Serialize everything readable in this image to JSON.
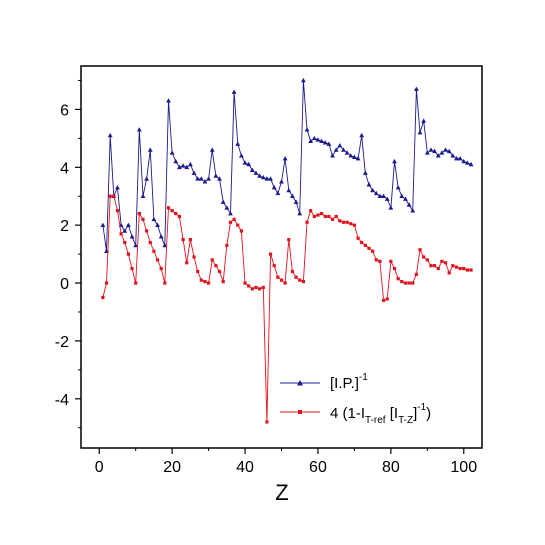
{
  "chart_data": {
    "type": "line",
    "xlabel": "Z",
    "ylabel": "",
    "xlim": [
      -5,
      105
    ],
    "ylim": [
      -5.7,
      7.5
    ],
    "xticks": [
      0,
      20,
      40,
      60,
      80,
      100
    ],
    "yticks": [
      -4,
      -2,
      0,
      2,
      4,
      6
    ],
    "xtick_labels": [
      "0",
      "20",
      "40",
      "60",
      "80",
      "100"
    ],
    "ytick_labels": [
      "-4",
      "-2",
      "0",
      "2",
      "4",
      "6"
    ],
    "grid": false,
    "legend_position": "bottom-right",
    "legend": {
      "blue": {
        "main": "[I.P.]",
        "sup": "-1"
      },
      "red": {
        "prefix": "4 (1-I",
        "sub1": "T-ref",
        "mid": " [I",
        "sub2": "T-Z",
        "close": "]",
        "sup": "-1",
        "end": ")"
      }
    },
    "series": [
      {
        "color": "#1a1a8c",
        "marker": "triangle",
        "x": [
          1,
          2,
          3,
          4,
          5,
          6,
          7,
          8,
          9,
          10,
          11,
          12,
          13,
          14,
          15,
          16,
          17,
          18,
          19,
          20,
          21,
          22,
          23,
          24,
          25,
          26,
          27,
          28,
          29,
          30,
          31,
          32,
          33,
          34,
          35,
          36,
          37,
          38,
          39,
          40,
          41,
          42,
          43,
          44,
          45,
          46,
          47,
          48,
          49,
          50,
          51,
          52,
          53,
          54,
          55,
          56,
          57,
          58,
          59,
          60,
          61,
          62,
          63,
          64,
          65,
          66,
          67,
          68,
          69,
          70,
          71,
          72,
          73,
          74,
          75,
          76,
          77,
          78,
          79,
          80,
          81,
          82,
          83,
          84,
          85,
          86,
          87,
          88,
          89,
          90,
          91,
          92,
          93,
          94,
          95,
          96,
          97,
          98,
          99,
          100,
          101,
          102
        ],
        "y": [
          2.0,
          1.1,
          5.1,
          3.0,
          3.3,
          2.0,
          1.8,
          2.0,
          1.6,
          1.3,
          5.3,
          3.0,
          3.6,
          4.6,
          2.2,
          2.0,
          1.6,
          1.3,
          6.3,
          4.5,
          4.2,
          4.0,
          4.05,
          4.0,
          4.1,
          3.8,
          3.6,
          3.6,
          3.5,
          3.6,
          4.6,
          3.7,
          3.6,
          2.8,
          2.6,
          2.4,
          6.6,
          4.8,
          4.4,
          4.15,
          4.1,
          3.9,
          3.8,
          3.7,
          3.65,
          3.6,
          3.6,
          3.3,
          3.1,
          3.5,
          4.3,
          3.2,
          3.0,
          2.8,
          2.4,
          7.0,
          5.3,
          4.9,
          5.0,
          4.95,
          4.9,
          4.85,
          4.8,
          4.4,
          4.6,
          4.75,
          4.6,
          4.5,
          4.4,
          4.35,
          4.3,
          5.1,
          3.8,
          3.4,
          3.2,
          3.1,
          3.0,
          3.0,
          2.9,
          2.6,
          4.2,
          3.3,
          3.0,
          2.9,
          2.7,
          2.5,
          6.7,
          5.2,
          5.6,
          4.5,
          4.6,
          4.55,
          4.4,
          4.5,
          4.6,
          4.55,
          4.4,
          4.3,
          4.3,
          4.2,
          4.15,
          4.1
        ]
      },
      {
        "color": "#e0141e",
        "marker": "square",
        "x": [
          1,
          2,
          3,
          4,
          5,
          6,
          7,
          8,
          9,
          10,
          11,
          12,
          13,
          14,
          15,
          16,
          17,
          18,
          19,
          20,
          21,
          22,
          23,
          24,
          25,
          26,
          27,
          28,
          29,
          30,
          31,
          32,
          33,
          34,
          35,
          36,
          37,
          38,
          39,
          40,
          41,
          42,
          43,
          44,
          45,
          46,
          47,
          48,
          49,
          50,
          51,
          52,
          53,
          54,
          55,
          56,
          57,
          58,
          59,
          60,
          61,
          62,
          63,
          64,
          65,
          66,
          67,
          68,
          69,
          70,
          71,
          72,
          73,
          74,
          75,
          76,
          77,
          78,
          79,
          80,
          81,
          82,
          83,
          84,
          85,
          86,
          87,
          88,
          89,
          90,
          91,
          92,
          93,
          94,
          95,
          96,
          97,
          98,
          99,
          100,
          101,
          102
        ],
        "y": [
          -0.5,
          0.0,
          3.0,
          3.0,
          2.5,
          1.7,
          1.4,
          1.0,
          0.5,
          0.0,
          2.4,
          2.2,
          1.8,
          1.4,
          1.1,
          0.8,
          0.5,
          0.0,
          2.6,
          2.5,
          2.4,
          2.3,
          1.5,
          0.7,
          1.5,
          0.9,
          0.4,
          0.1,
          0.05,
          0.0,
          0.8,
          0.6,
          0.4,
          0.05,
          1.3,
          2.1,
          2.2,
          2.0,
          1.8,
          0.0,
          -0.1,
          -0.2,
          -0.15,
          -0.2,
          -0.15,
          -4.8,
          1.0,
          0.6,
          0.2,
          0.1,
          0.0,
          1.5,
          0.4,
          0.2,
          0.1,
          0.05,
          2.1,
          2.5,
          2.3,
          2.35,
          2.4,
          2.3,
          2.3,
          2.2,
          2.3,
          2.15,
          2.1,
          2.1,
          2.05,
          2.0,
          1.55,
          1.4,
          1.3,
          1.2,
          1.1,
          0.8,
          0.75,
          -0.6,
          -0.55,
          0.75,
          0.5,
          0.15,
          0.05,
          0.0,
          0.0,
          0.0,
          0.3,
          1.15,
          0.9,
          0.8,
          0.6,
          0.6,
          0.5,
          0.75,
          0.7,
          0.35,
          0.6,
          0.55,
          0.5,
          0.5,
          0.45,
          0.45
        ]
      }
    ]
  }
}
